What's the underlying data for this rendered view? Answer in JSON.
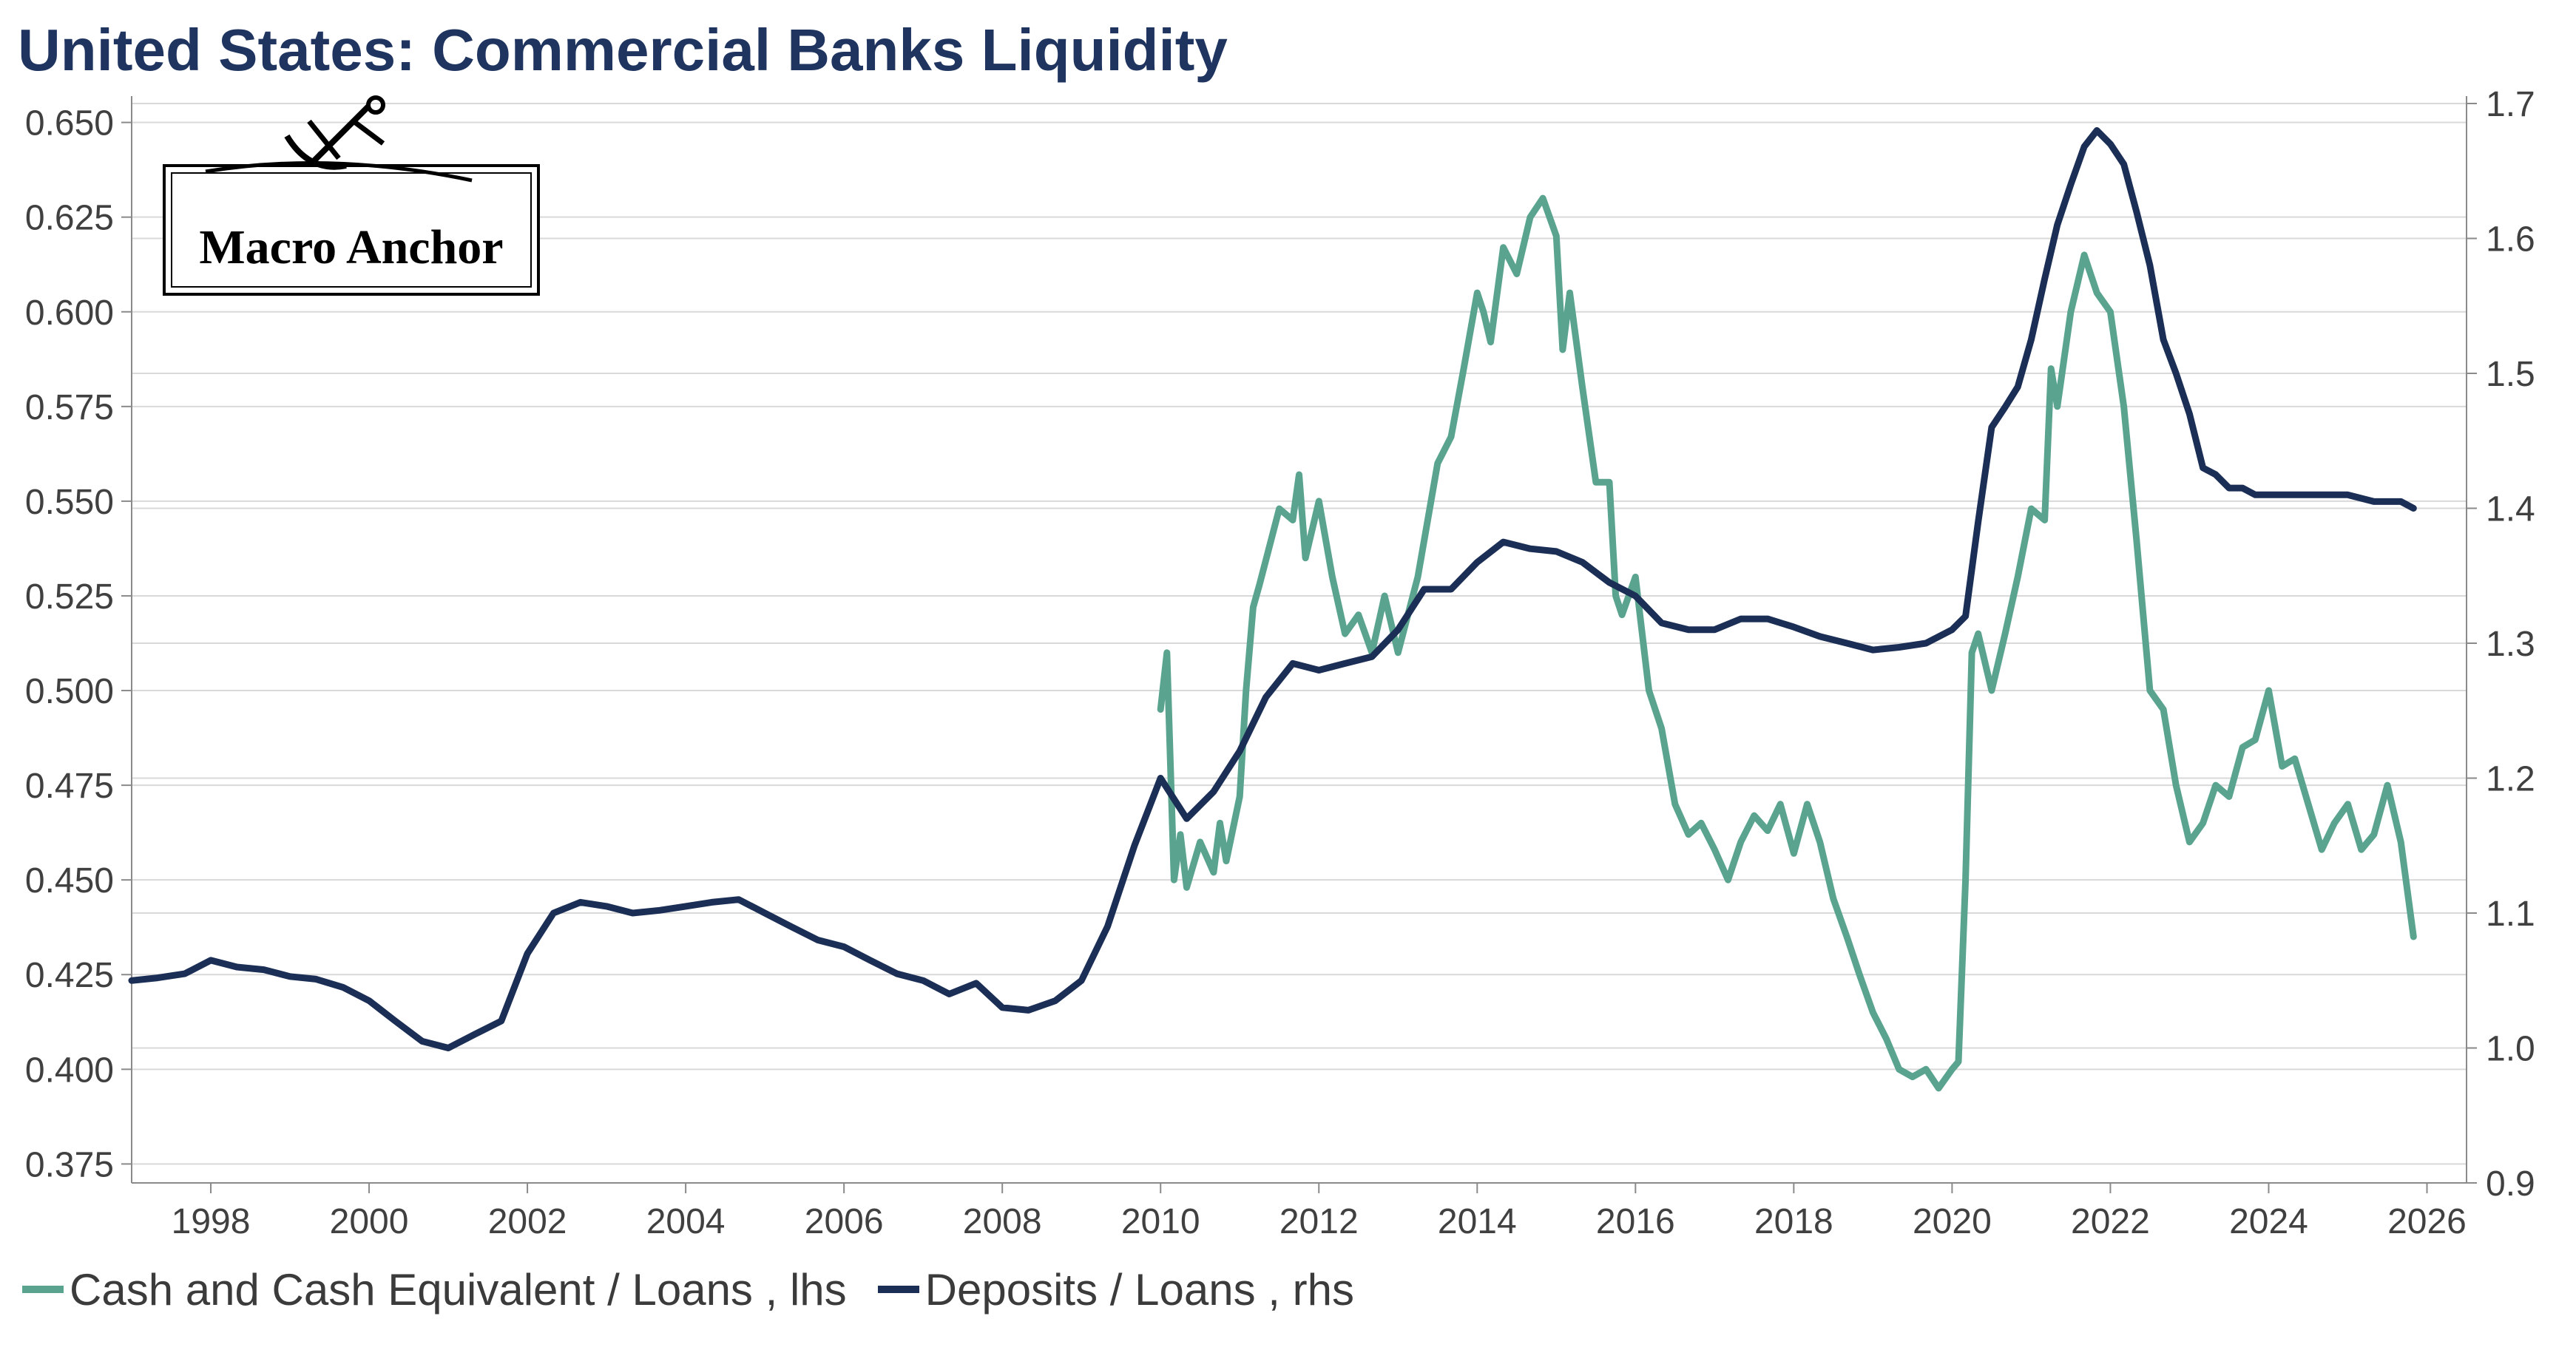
{
  "colors": {
    "series1": "#5aa48f",
    "series2": "#1b2e55",
    "title": "#1f3560",
    "grid": "#d9d9d9",
    "axis_text": "#404040"
  },
  "logo": {
    "text": "Macro Anchor",
    "icon": "anchor-icon"
  },
  "chart_data": {
    "type": "line",
    "title": "United States: Commercial Banks Liquidity",
    "xlabel": "",
    "ylabel": "",
    "xlim": [
      1997.0,
      2026.5
    ],
    "ylim_left": [
      0.37,
      0.655
    ],
    "ylim_right": [
      0.9,
      1.7
    ],
    "y_ticks_left": [
      "0.650",
      "0.625",
      "0.600",
      "0.575",
      "0.550",
      "0.525",
      "0.500",
      "0.475",
      "0.450",
      "0.425",
      "0.400",
      "0.375"
    ],
    "y_ticks_right": [
      "1.7",
      "1.6",
      "1.5",
      "1.4",
      "1.3",
      "1.2",
      "1.1",
      "1.0",
      "0.9"
    ],
    "x_ticks": [
      "1998",
      "2000",
      "2002",
      "2004",
      "2006",
      "2008",
      "2010",
      "2012",
      "2014",
      "2016",
      "2018",
      "2020",
      "2022",
      "2024",
      "2026"
    ],
    "grid": "horizontal",
    "legend_position": "bottom",
    "series": [
      {
        "name": "Cash and Cash Equivalent / Loans , lhs",
        "axis": "left",
        "x": [
          2010.0,
          2010.08,
          2010.17,
          2010.25,
          2010.33,
          2010.5,
          2010.67,
          2010.75,
          2010.83,
          2011.0,
          2011.08,
          2011.17,
          2011.25,
          2011.5,
          2011.67,
          2011.75,
          2011.83,
          2012.0,
          2012.17,
          2012.33,
          2012.5,
          2012.67,
          2012.83,
          2013.0,
          2013.25,
          2013.5,
          2013.67,
          2013.83,
          2014.0,
          2014.08,
          2014.17,
          2014.33,
          2014.5,
          2014.67,
          2014.83,
          2015.0,
          2015.08,
          2015.17,
          2015.33,
          2015.5,
          2015.67,
          2015.75,
          2015.83,
          2016.0,
          2016.17,
          2016.33,
          2016.5,
          2016.67,
          2016.83,
          2017.0,
          2017.17,
          2017.33,
          2017.5,
          2017.67,
          2017.83,
          2018.0,
          2018.17,
          2018.33,
          2018.5,
          2018.67,
          2018.83,
          2019.0,
          2019.17,
          2019.33,
          2019.5,
          2019.67,
          2019.83,
          2020.0,
          2020.08,
          2020.17,
          2020.25,
          2020.33,
          2020.5,
          2020.67,
          2020.83,
          2021.0,
          2021.17,
          2021.25,
          2021.33,
          2021.5,
          2021.67,
          2021.83,
          2022.0,
          2022.17,
          2022.33,
          2022.5,
          2022.67,
          2022.83,
          2023.0,
          2023.17,
          2023.33,
          2023.5,
          2023.67,
          2023.83,
          2024.0,
          2024.17,
          2024.33,
          2024.5,
          2024.67,
          2024.83,
          2025.0,
          2025.17,
          2025.33,
          2025.5,
          2025.67,
          2025.83
        ],
        "values": [
          0.495,
          0.51,
          0.45,
          0.462,
          0.448,
          0.46,
          0.452,
          0.465,
          0.455,
          0.472,
          0.5,
          0.522,
          0.528,
          0.548,
          0.545,
          0.557,
          0.535,
          0.55,
          0.53,
          0.515,
          0.52,
          0.51,
          0.525,
          0.51,
          0.53,
          0.56,
          0.567,
          0.585,
          0.605,
          0.6,
          0.592,
          0.617,
          0.61,
          0.625,
          0.63,
          0.62,
          0.59,
          0.605,
          0.58,
          0.555,
          0.555,
          0.525,
          0.52,
          0.53,
          0.5,
          0.49,
          0.47,
          0.462,
          0.465,
          0.458,
          0.45,
          0.46,
          0.467,
          0.463,
          0.47,
          0.457,
          0.47,
          0.46,
          0.445,
          0.435,
          0.425,
          0.415,
          0.408,
          0.4,
          0.398,
          0.4,
          0.395,
          0.4,
          0.402,
          0.45,
          0.51,
          0.515,
          0.5,
          0.515,
          0.53,
          0.548,
          0.545,
          0.585,
          0.575,
          0.6,
          0.615,
          0.605,
          0.6,
          0.575,
          0.54,
          0.5,
          0.495,
          0.475,
          0.46,
          0.465,
          0.475,
          0.472,
          0.485,
          0.487,
          0.5,
          0.48,
          0.482,
          0.47,
          0.458,
          0.465,
          0.47,
          0.458,
          0.462,
          0.475,
          0.46,
          0.435
        ]
      },
      {
        "name": "Deposits / Loans , rhs",
        "axis": "right",
        "x": [
          1997.0,
          1997.33,
          1997.67,
          1998.0,
          1998.33,
          1998.67,
          1999.0,
          1999.33,
          1999.67,
          2000.0,
          2000.33,
          2000.67,
          2001.0,
          2001.33,
          2001.67,
          2002.0,
          2002.33,
          2002.67,
          2003.0,
          2003.33,
          2003.67,
          2004.0,
          2004.33,
          2004.67,
          2005.0,
          2005.33,
          2005.67,
          2006.0,
          2006.33,
          2006.67,
          2007.0,
          2007.33,
          2007.67,
          2008.0,
          2008.33,
          2008.67,
          2009.0,
          2009.33,
          2009.67,
          2010.0,
          2010.33,
          2010.67,
          2011.0,
          2011.33,
          2011.67,
          2012.0,
          2012.33,
          2012.67,
          2013.0,
          2013.33,
          2013.67,
          2014.0,
          2014.33,
          2014.67,
          2015.0,
          2015.33,
          2015.67,
          2016.0,
          2016.33,
          2016.67,
          2017.0,
          2017.33,
          2017.67,
          2018.0,
          2018.33,
          2018.67,
          2019.0,
          2019.33,
          2019.67,
          2020.0,
          2020.17,
          2020.33,
          2020.5,
          2020.67,
          2020.83,
          2021.0,
          2021.17,
          2021.33,
          2021.5,
          2021.67,
          2021.83,
          2022.0,
          2022.17,
          2022.33,
          2022.5,
          2022.67,
          2022.83,
          2023.0,
          2023.17,
          2023.33,
          2023.5,
          2023.67,
          2023.83,
          2024.0,
          2024.33,
          2024.67,
          2025.0,
          2025.33,
          2025.67,
          2025.83
        ],
        "values": [
          1.05,
          1.052,
          1.055,
          1.065,
          1.06,
          1.058,
          1.053,
          1.051,
          1.045,
          1.035,
          1.02,
          1.005,
          1.0,
          1.01,
          1.02,
          1.07,
          1.1,
          1.108,
          1.105,
          1.1,
          1.102,
          1.105,
          1.108,
          1.11,
          1.1,
          1.09,
          1.08,
          1.075,
          1.065,
          1.055,
          1.05,
          1.04,
          1.048,
          1.03,
          1.028,
          1.035,
          1.05,
          1.09,
          1.15,
          1.2,
          1.17,
          1.19,
          1.22,
          1.26,
          1.285,
          1.28,
          1.285,
          1.29,
          1.31,
          1.34,
          1.34,
          1.36,
          1.375,
          1.37,
          1.368,
          1.36,
          1.345,
          1.335,
          1.315,
          1.31,
          1.31,
          1.318,
          1.318,
          1.312,
          1.305,
          1.3,
          1.295,
          1.297,
          1.3,
          1.31,
          1.32,
          1.39,
          1.46,
          1.475,
          1.49,
          1.525,
          1.57,
          1.61,
          1.64,
          1.668,
          1.68,
          1.67,
          1.655,
          1.62,
          1.58,
          1.525,
          1.5,
          1.47,
          1.43,
          1.425,
          1.415,
          1.415,
          1.41,
          1.41,
          1.41,
          1.41,
          1.41,
          1.405,
          1.405,
          1.4
        ]
      }
    ]
  }
}
